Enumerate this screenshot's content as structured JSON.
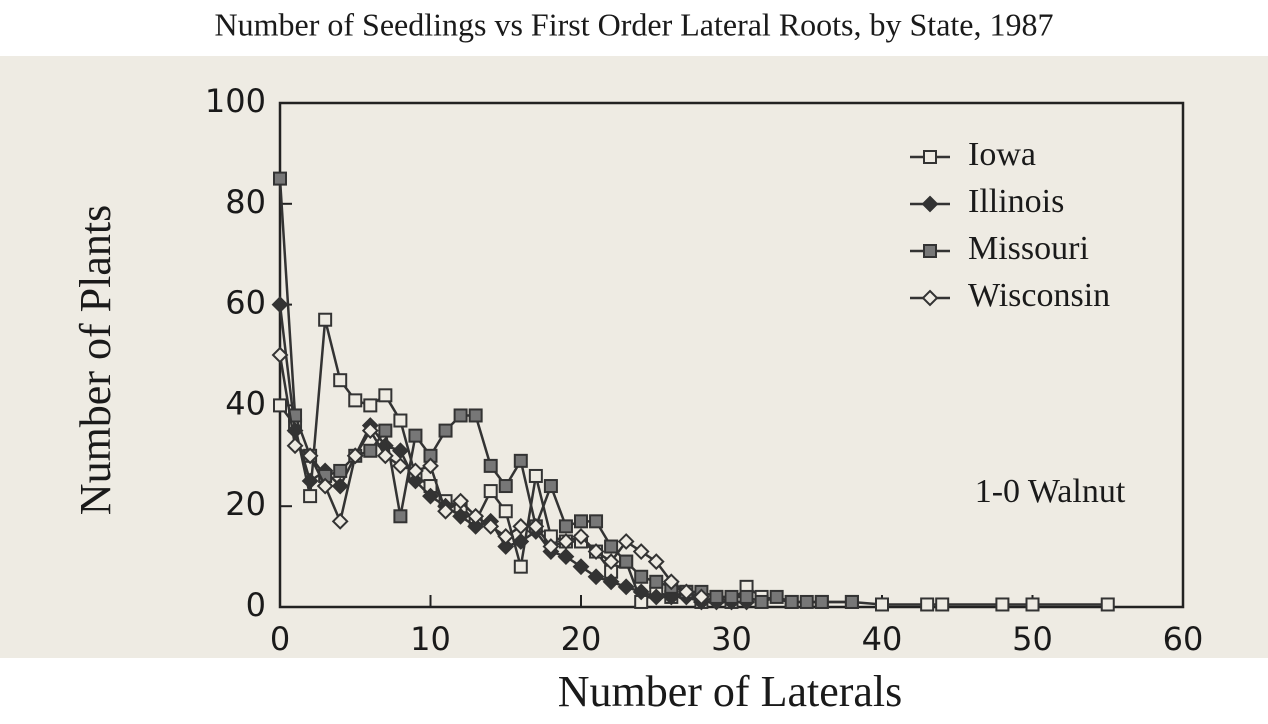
{
  "chart_data": {
    "type": "line",
    "title": "Number of Seedlings vs First Order Lateral Roots, by State, 1987",
    "x_label": "Number of Laterals",
    "y_label": "Number of Plants",
    "annotation": "1-0 Walnut",
    "xlim": [
      0,
      60
    ],
    "xticks": [
      0,
      10,
      20,
      30,
      40,
      50,
      60
    ],
    "ylim": [
      0,
      100
    ],
    "yticks": [
      0,
      20,
      40,
      60,
      80,
      100
    ],
    "legend": "top-right",
    "series": [
      {
        "name": "Iowa",
        "color": "#333333",
        "marker": "square-open",
        "x": [
          0,
          1,
          2,
          3,
          4,
          5,
          6,
          7,
          8,
          9,
          10,
          11,
          12,
          13,
          14,
          15,
          16,
          17,
          18,
          19,
          20,
          21,
          22,
          23,
          24,
          25,
          26,
          27,
          28,
          29,
          30,
          31,
          32,
          34,
          36,
          38,
          40,
          43,
          44,
          48,
          50,
          55
        ],
        "values": [
          40,
          36,
          22,
          57,
          45,
          41,
          40,
          42,
          37,
          26,
          24,
          21,
          20,
          17,
          23,
          19,
          8,
          26,
          14,
          13,
          13,
          11,
          7,
          9,
          1,
          3,
          2,
          3,
          1,
          2,
          1,
          4,
          2,
          1,
          1,
          1,
          0.5,
          0.5,
          0.5,
          0.5,
          0.5,
          0.5
        ]
      },
      {
        "name": "Illinois",
        "color": "#333333",
        "marker": "diamond",
        "x": [
          0,
          1,
          2,
          3,
          4,
          5,
          6,
          7,
          8,
          9,
          10,
          11,
          12,
          13,
          14,
          15,
          16,
          17,
          18,
          19,
          20,
          21,
          22,
          23,
          24,
          25,
          26,
          27,
          28,
          29,
          30,
          31
        ],
        "values": [
          60,
          35,
          25,
          27,
          24,
          30,
          36,
          32,
          31,
          25,
          22,
          20,
          18,
          16,
          17,
          12,
          13,
          15,
          11,
          10,
          8,
          6,
          5,
          4,
          3,
          2,
          2,
          2,
          1,
          1,
          1,
          1
        ]
      },
      {
        "name": "Missouri",
        "color": "#333333",
        "marker": "square",
        "x": [
          0,
          1,
          2,
          3,
          4,
          5,
          6,
          7,
          8,
          9,
          10,
          11,
          12,
          13,
          14,
          15,
          16,
          17,
          18,
          19,
          20,
          21,
          22,
          23,
          24,
          25,
          26,
          27,
          28,
          29,
          30,
          31,
          32,
          33,
          34,
          35,
          36,
          38
        ],
        "values": [
          85,
          38,
          30,
          26,
          27,
          30,
          31,
          35,
          18,
          34,
          30,
          35,
          38,
          38,
          28,
          24,
          29,
          16,
          24,
          16,
          17,
          17,
          12,
          9,
          6,
          5,
          4,
          3,
          3,
          2,
          2,
          2,
          1,
          2,
          1,
          1,
          1,
          1
        ]
      },
      {
        "name": "Wisconsin",
        "color": "#333333",
        "marker": "diamond-open",
        "x": [
          0,
          1,
          2,
          3,
          4,
          5,
          6,
          7,
          8,
          9,
          10,
          11,
          12,
          13,
          14,
          15,
          16,
          17,
          18,
          19,
          20,
          21,
          22,
          23,
          24,
          25,
          26,
          27,
          28
        ],
        "values": [
          50,
          32,
          30,
          24,
          17,
          30,
          35,
          30,
          28,
          27,
          28,
          19,
          21,
          18,
          16,
          14,
          16,
          16,
          12,
          13,
          14,
          11,
          9,
          13,
          11,
          9,
          5,
          3,
          2
        ]
      }
    ]
  }
}
